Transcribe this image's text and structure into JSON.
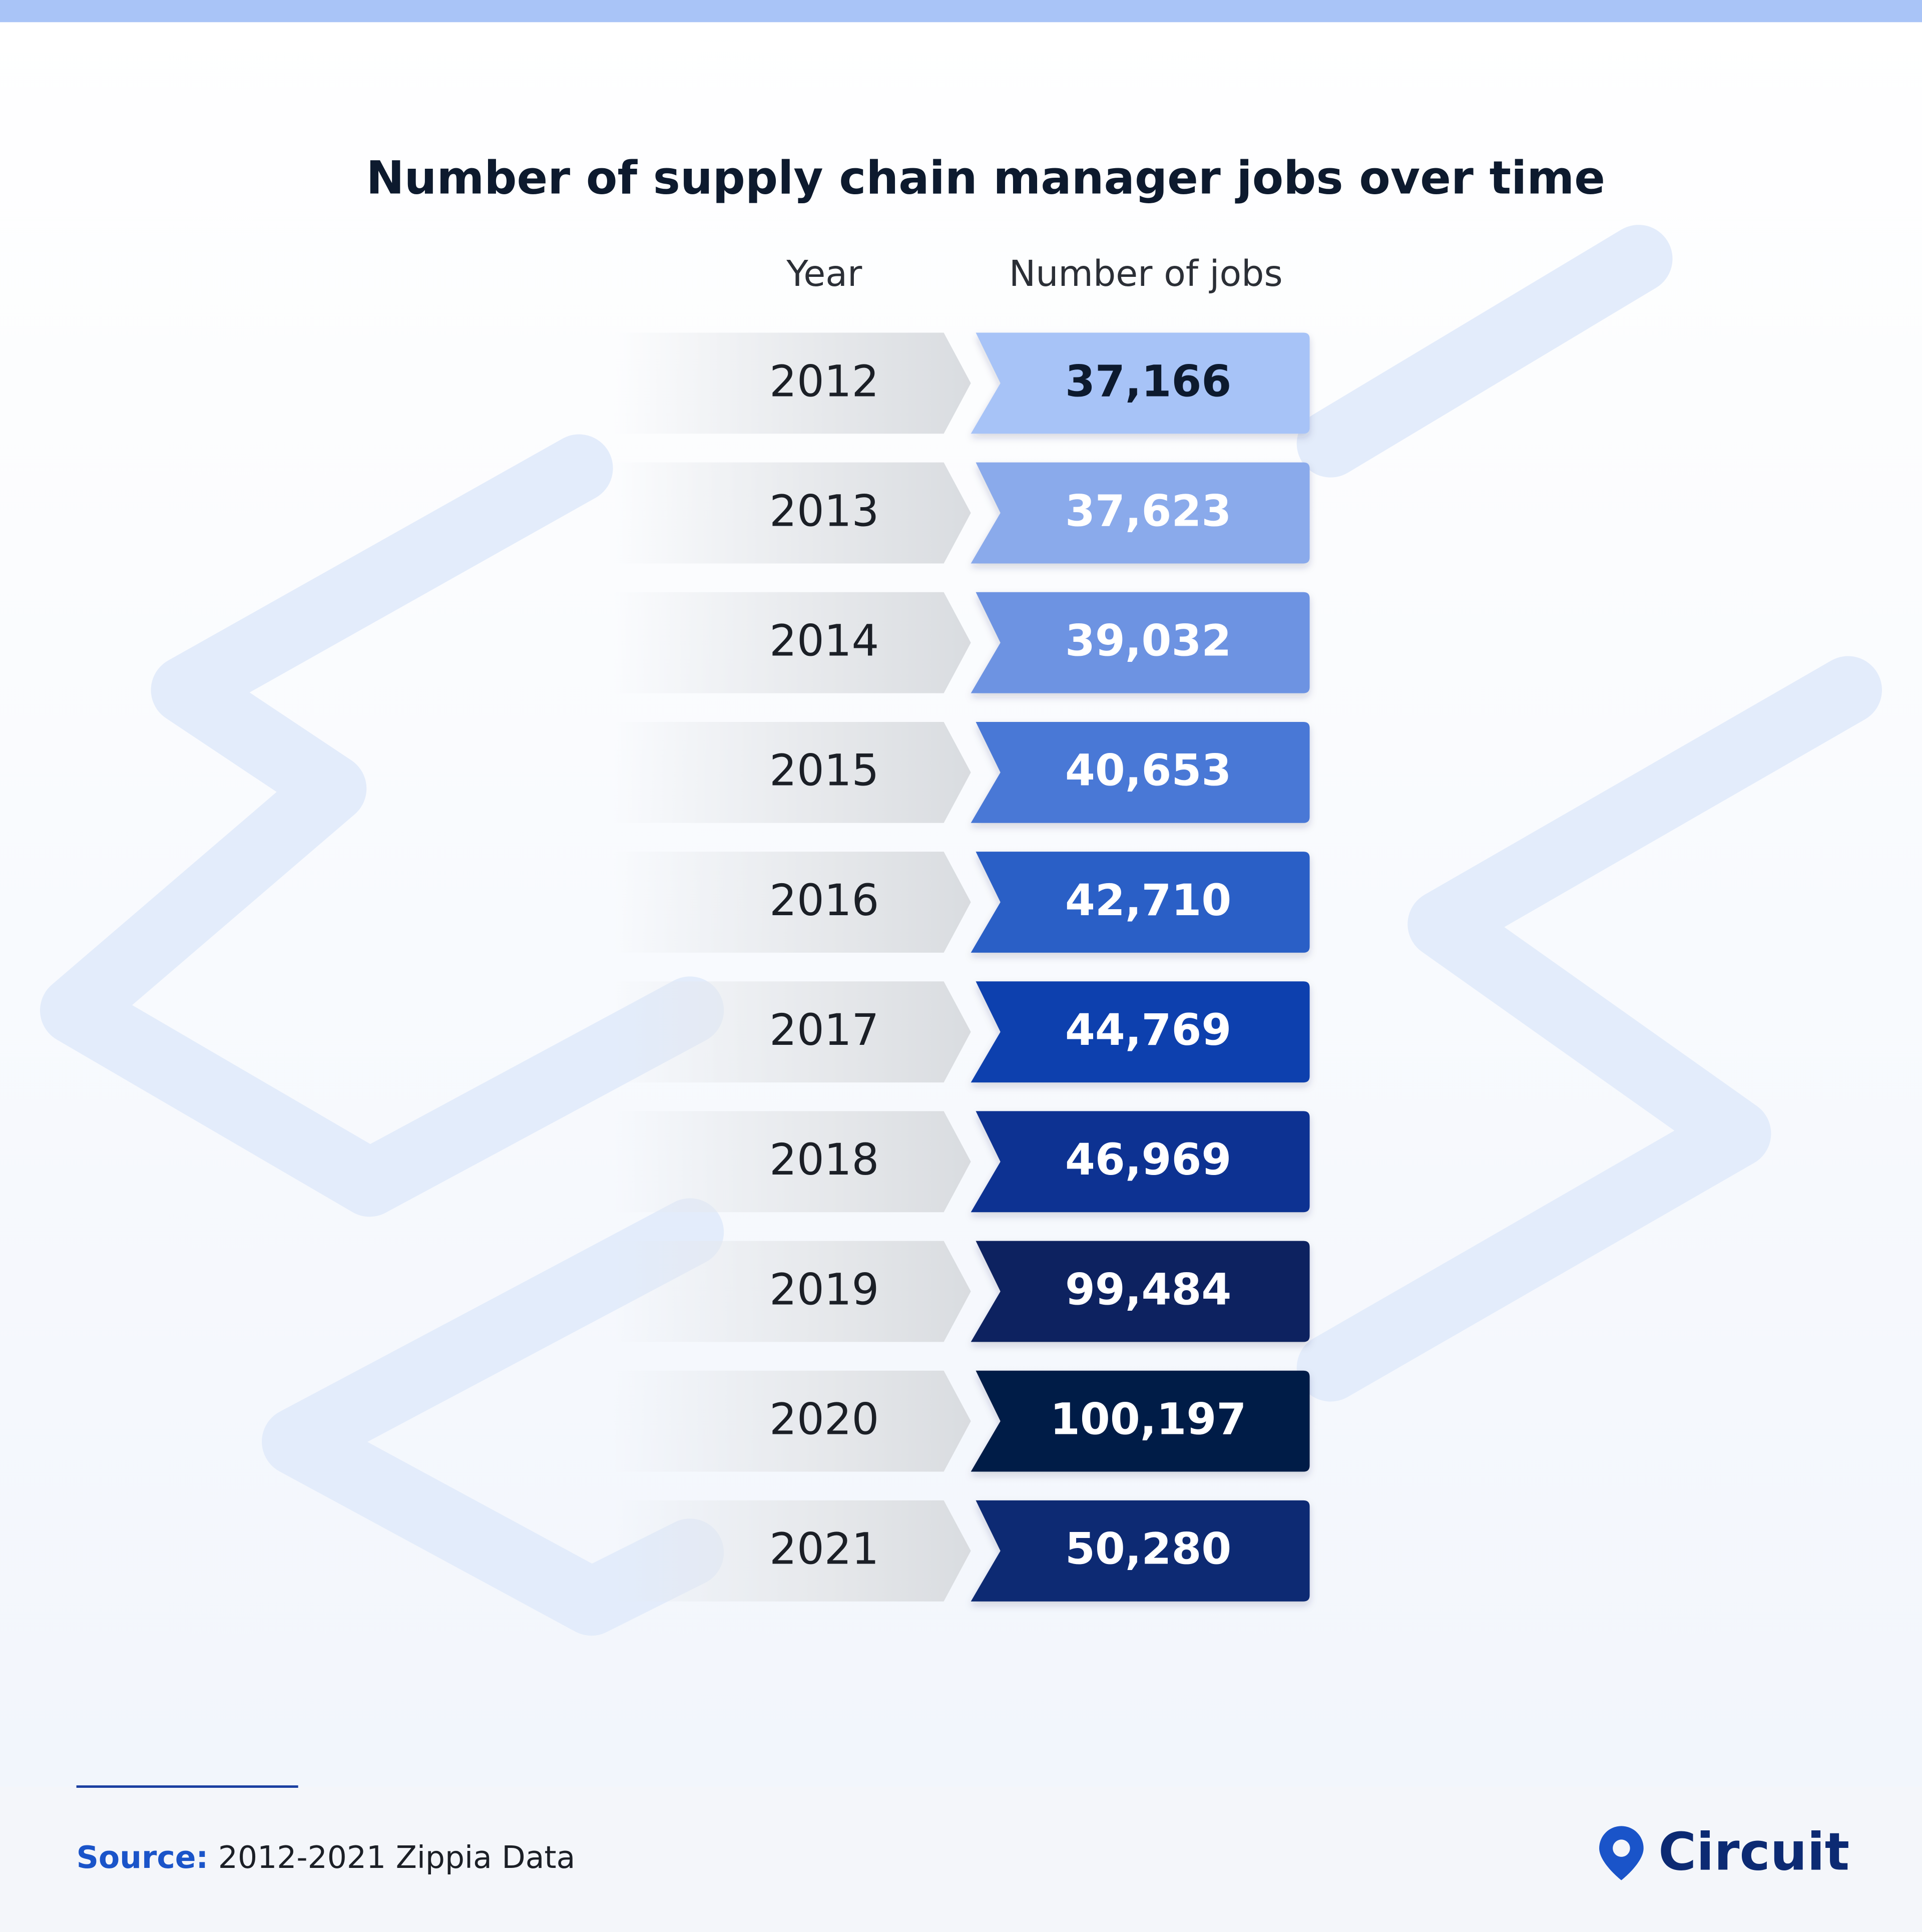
{
  "header": {
    "title": "Number of supply chain manager jobs over time"
  },
  "table": {
    "columns": [
      "Year",
      "Number of jobs"
    ],
    "rows": [
      [
        "2012",
        "37,166"
      ],
      [
        "2013",
        "37,623"
      ],
      [
        "2014",
        "39,032"
      ],
      [
        "2015",
        "40,653"
      ],
      [
        "2016",
        "42,710"
      ],
      [
        "2017",
        "44,769"
      ],
      [
        "2018",
        "46,969"
      ],
      [
        "2019",
        "99,484"
      ],
      [
        "2020",
        "100,197"
      ],
      [
        "2021",
        "50,280"
      ]
    ]
  },
  "footer": {
    "source_label": "Source:",
    "source_text": "2012-2021 Zippia Data",
    "brand": "Circuit"
  }
}
